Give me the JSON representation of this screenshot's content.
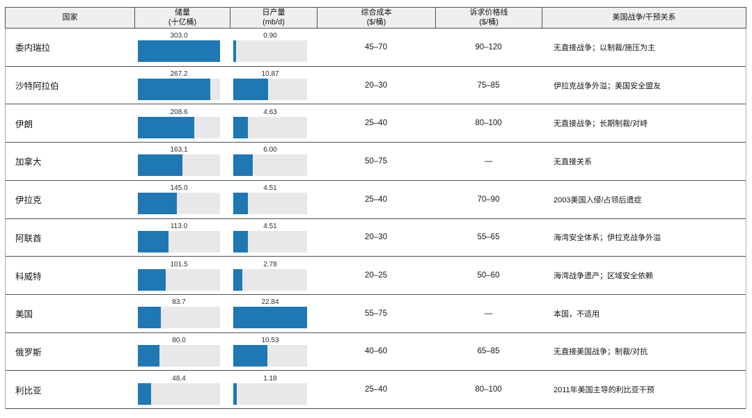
{
  "chart_data": {
    "type": "table",
    "title": "",
    "legend": "none",
    "grid": "row-separators-only",
    "columns": [
      {
        "key": "country",
        "title": "国家",
        "unit": ""
      },
      {
        "key": "reserves",
        "title": "储量",
        "unit": "(十亿桶)"
      },
      {
        "key": "production",
        "title": "日产量",
        "unit": "(mb/d)"
      },
      {
        "key": "cost",
        "title": "综合成本",
        "unit": "($/桶)"
      },
      {
        "key": "price",
        "title": "诉求价格线",
        "unit": "($/桶)"
      },
      {
        "key": "relation",
        "title": "美国战争/干预关系",
        "unit": ""
      }
    ],
    "bar_max": {
      "reserves": 303.0,
      "production": 22.84
    },
    "rows": [
      {
        "country": "委内瑞拉",
        "reserves": 303.0,
        "reserves_label": "303.0",
        "production": 0.9,
        "production_label": "0.90",
        "cost": "45–70",
        "price": "90–120",
        "relation": "无直接战争；以制裁/施压为主"
      },
      {
        "country": "沙特阿拉伯",
        "reserves": 267.2,
        "reserves_label": "267.2",
        "production": 10.87,
        "production_label": "10.87",
        "cost": "20–30",
        "price": "75–85",
        "relation": "伊拉克战争外溢；美国安全盟友"
      },
      {
        "country": "伊朗",
        "reserves": 208.6,
        "reserves_label": "208.6",
        "production": 4.63,
        "production_label": "4.63",
        "cost": "25–40",
        "price": "80–100",
        "relation": "无直接战争；长期制裁/对峙"
      },
      {
        "country": "加拿大",
        "reserves": 163.1,
        "reserves_label": "163.1",
        "production": 6.0,
        "production_label": "6.00",
        "cost": "50–75",
        "price": "—",
        "relation": "无直接关系"
      },
      {
        "country": "伊拉克",
        "reserves": 145.0,
        "reserves_label": "145.0",
        "production": 4.51,
        "production_label": "4.51",
        "cost": "25–40",
        "price": "70–90",
        "relation": "2003美国入侵/占领后遗症"
      },
      {
        "country": "阿联酋",
        "reserves": 113.0,
        "reserves_label": "113.0",
        "production": 4.51,
        "production_label": "4.51",
        "cost": "20–30",
        "price": "55–65",
        "relation": "海湾安全体系；伊拉克战争外溢"
      },
      {
        "country": "科威特",
        "reserves": 101.5,
        "reserves_label": "101.5",
        "production": 2.78,
        "production_label": "2.78",
        "cost": "20–25",
        "price": "50–60",
        "relation": "海湾战争遗产；区域安全依赖"
      },
      {
        "country": "美国",
        "reserves": 83.7,
        "reserves_label": "83.7",
        "production": 22.84,
        "production_label": "22.84",
        "cost": "55–75",
        "price": "—",
        "relation": "本国，不适用"
      },
      {
        "country": "俄罗斯",
        "reserves": 80.0,
        "reserves_label": "80.0",
        "production": 10.53,
        "production_label": "10.53",
        "cost": "40–60",
        "price": "65–85",
        "relation": "无直接美国战争；制裁/对抗"
      },
      {
        "country": "利比亚",
        "reserves": 48.4,
        "reserves_label": "48.4",
        "production": 1.18,
        "production_label": "1.18",
        "cost": "25–40",
        "price": "80–100",
        "relation": "2011年美国主导的利比亚干预"
      }
    ]
  },
  "colors": {
    "bar_fill": "#1f77b4",
    "bar_track": "#e8e8e8",
    "header_bg": "#efefef",
    "border_dark": "#4f4f4f"
  }
}
